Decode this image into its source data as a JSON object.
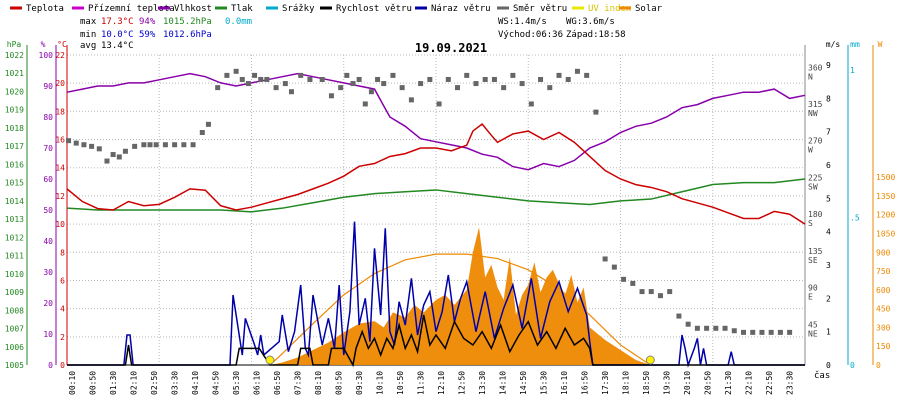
{
  "legend": [
    {
      "label": "Teplota",
      "color": "#cc0000"
    },
    {
      "label": "Přízemní teplota",
      "color": "#cc00cc"
    },
    {
      "label": "Vlhkost",
      "color": "#8800aa"
    },
    {
      "label": "Tlak",
      "color": "#228822"
    },
    {
      "label": "Srážky",
      "color": "#00aacc"
    },
    {
      "label": "Rychlost větru",
      "color": "#000000"
    },
    {
      "label": "Náraz větru",
      "color": "#0000aa"
    },
    {
      "label": "Směr větru",
      "color": "#666666"
    },
    {
      "label": "UV index",
      "color": "#e8e800"
    },
    {
      "label": "Solar",
      "color": "#ee8800"
    }
  ],
  "stats": {
    "max_label": "max",
    "max_temp": "17.3°C",
    "max_hum": "94%",
    "max_press": "1015.2hPa",
    "max_rain": "0.0mm",
    "min_label": "min",
    "min_temp": "10.0°C",
    "min_hum": "59%",
    "min_press": "1012.6hPa",
    "avg_label": "avg",
    "avg_temp": "13.4°C"
  },
  "wind_info": {
    "ws": "WS:1.4m/s",
    "wg": "WG:3.6m/s",
    "sunrise": "Východ:06:36",
    "sunset": "Západ:18:58"
  },
  "colors": {
    "temp": "#cc0000",
    "hum": "#8800aa",
    "press": "#228822",
    "wind": "#000000",
    "gust": "#0000aa",
    "dir": "#666666",
    "solar": "#ee8800",
    "rain": "#00aacc",
    "grid": "#bbbbbb",
    "sun_marker": "#ffee00"
  },
  "chart_data": {
    "type": "line",
    "title": "19.09.2021",
    "xlabel": "čas",
    "x_ticks": [
      "00:10",
      "00:50",
      "01:30",
      "02:10",
      "02:50",
      "03:30",
      "04:10",
      "04:50",
      "05:30",
      "06:10",
      "06:50",
      "07:30",
      "08:10",
      "08:50",
      "09:30",
      "10:10",
      "10:50",
      "11:30",
      "12:10",
      "12:50",
      "13:30",
      "14:10",
      "14:50",
      "15:30",
      "16:10",
      "16:50",
      "17:30",
      "18:10",
      "18:50",
      "19:30",
      "20:10",
      "20:50",
      "21:30",
      "22:10",
      "22:50",
      "23:30"
    ],
    "x_hours": [
      0,
      3,
      6,
      9,
      12,
      15,
      18,
      21,
      24
    ],
    "axes": {
      "temp": {
        "unit": "°C",
        "ylim": [
          0,
          22
        ],
        "ticks": [
          0,
          2,
          4,
          6,
          8,
          10,
          12,
          14,
          16,
          18,
          20,
          22
        ]
      },
      "hum": {
        "unit": "%",
        "ylim": [
          0,
          100
        ],
        "ticks": [
          0,
          10,
          20,
          30,
          40,
          50,
          60,
          70,
          80,
          90,
          100
        ]
      },
      "press": {
        "unit": "hPa",
        "ylim": [
          1005,
          1022
        ],
        "ticks": [
          1005,
          1006,
          1007,
          1008,
          1009,
          1010,
          1011,
          1012,
          1013,
          1014,
          1015,
          1016,
          1017,
          1018,
          1019,
          1020,
          1021,
          1022
        ]
      },
      "dir": {
        "ticks": [
          {
            "v": 45,
            "l": "45 NE"
          },
          {
            "v": 90,
            "l": "90 E"
          },
          {
            "v": 135,
            "l": "135 SE"
          },
          {
            "v": 180,
            "l": "180 S"
          },
          {
            "v": 225,
            "l": "225 SW"
          },
          {
            "v": 270,
            "l": "270 W"
          },
          {
            "v": 315,
            "l": "315 NW"
          },
          {
            "v": 360,
            "l": "360 N"
          }
        ]
      },
      "wind": {
        "unit": "m/s",
        "ylim": [
          0,
          9
        ],
        "ticks": [
          0,
          1,
          2,
          3,
          4,
          5,
          6,
          7,
          8,
          9
        ]
      },
      "rain": {
        "unit": "mm",
        "ticks": [
          {
            "v": 0,
            "l": "0"
          },
          {
            "v": 0.5,
            "l": ".5"
          },
          {
            "v": 1,
            "l": "1"
          }
        ]
      },
      "solar": {
        "unit": "W",
        "ylim": [
          0,
          2475
        ],
        "ticks": [
          0,
          150,
          300,
          450,
          600,
          750,
          900,
          1050,
          1200,
          1350,
          1500
        ]
      }
    },
    "series": [
      {
        "name": "Teplota",
        "axis": "temp",
        "x": [
          0,
          0.5,
          1,
          1.5,
          2,
          2.5,
          3,
          3.5,
          4,
          4.5,
          5,
          5.5,
          6,
          6.5,
          7,
          7.5,
          8,
          8.5,
          9,
          9.5,
          10,
          10.5,
          11,
          11.5,
          12,
          12.5,
          13,
          13.2,
          13.5,
          13.8,
          14,
          14.5,
          15,
          15.5,
          16,
          16.5,
          17,
          17.5,
          18,
          18.5,
          19,
          19.5,
          20,
          20.5,
          21,
          21.5,
          22,
          22.5,
          23,
          23.5,
          24
        ],
        "y": [
          12.5,
          11.6,
          11.1,
          11.0,
          11.6,
          11.3,
          11.4,
          11.9,
          12.5,
          12.4,
          11.3,
          11.0,
          11.2,
          11.5,
          11.8,
          12.1,
          12.5,
          12.9,
          13.4,
          14.1,
          14.3,
          14.8,
          15.0,
          15.4,
          15.4,
          15.2,
          15.6,
          16.6,
          17.1,
          16.3,
          15.8,
          16.4,
          16.6,
          16.0,
          16.5,
          15.8,
          14.8,
          13.8,
          13.2,
          12.8,
          12.6,
          12.3,
          11.8,
          11.5,
          11.2,
          10.8,
          10.4,
          10.4,
          10.9,
          10.7,
          10.0
        ]
      },
      {
        "name": "Vlhkost",
        "axis": "hum",
        "x": [
          0,
          0.5,
          1,
          1.5,
          2,
          2.5,
          3,
          3.5,
          4,
          4.5,
          5,
          5.5,
          6,
          6.5,
          7,
          7.5,
          8,
          8.5,
          9,
          9.5,
          10,
          10.5,
          11,
          11.5,
          12,
          12.5,
          13,
          13.5,
          14,
          14.5,
          15,
          15.5,
          16,
          16.5,
          17,
          17.5,
          18,
          18.5,
          19,
          19.5,
          20,
          20.5,
          21,
          21.5,
          22,
          22.5,
          23,
          23.5,
          24
        ],
        "y": [
          88,
          89,
          90,
          90,
          91,
          91,
          92,
          93,
          94,
          93,
          91,
          90,
          91,
          92,
          93,
          94,
          93,
          92,
          91,
          90,
          89,
          80,
          77,
          73,
          72,
          71,
          70,
          68,
          67,
          64,
          63,
          65,
          64,
          66,
          70,
          72,
          75,
          77,
          78,
          80,
          83,
          84,
          86,
          87,
          88,
          88,
          89,
          86,
          87
        ]
      },
      {
        "name": "Tlak",
        "axis": "press",
        "x": [
          0,
          1,
          2,
          3,
          4,
          5,
          6,
          7,
          8,
          9,
          10,
          11,
          12,
          13,
          14,
          15,
          16,
          17,
          18,
          19,
          20,
          21,
          22,
          23,
          24
        ],
        "y": [
          1013.6,
          1013.5,
          1013.5,
          1013.5,
          1013.5,
          1013.5,
          1013.4,
          1013.6,
          1013.9,
          1014.2,
          1014.4,
          1014.5,
          1014.6,
          1014.4,
          1014.2,
          1014.0,
          1013.9,
          1013.8,
          1014.0,
          1014.1,
          1014.5,
          1014.9,
          1015.0,
          1015.0,
          1015.2
        ]
      },
      {
        "name": "Rychlost větru",
        "axis": "wind",
        "x": [
          0,
          1.9,
          2.0,
          2.05,
          2.1,
          5.5,
          5.6,
          6.2,
          6.25,
          6.6,
          7.5,
          7.6,
          7.9,
          8.0,
          8.5,
          8.6,
          9.0,
          9.3,
          9.4,
          9.6,
          9.8,
          10.0,
          10.2,
          10.4,
          10.6,
          10.8,
          11.0,
          11.2,
          11.4,
          11.6,
          11.8,
          12.0,
          12.3,
          12.6,
          12.9,
          13.2,
          13.5,
          13.8,
          14.1,
          14.4,
          14.7,
          15.0,
          15.3,
          15.6,
          15.9,
          16.2,
          16.5,
          16.8,
          17.0,
          17.1,
          24
        ],
        "y": [
          0,
          0,
          0.6,
          0.3,
          0,
          0,
          0.5,
          0.5,
          0.5,
          0,
          0,
          0.5,
          0.5,
          0,
          0,
          0.5,
          0.5,
          0,
          0.5,
          1.0,
          0.5,
          0.8,
          0.3,
          0.8,
          0.5,
          1.2,
          0.5,
          0.9,
          0.4,
          1.5,
          0.6,
          0.9,
          0.5,
          1.3,
          0.8,
          0.6,
          1.0,
          0.5,
          1.2,
          0.4,
          0.9,
          1.3,
          0.6,
          1.0,
          0.5,
          1.1,
          0.6,
          0.8,
          0.5,
          0,
          0
        ]
      },
      {
        "name": "Náraz větru",
        "axis": "wind",
        "x": [
          0,
          1.85,
          1.95,
          2.05,
          2.15,
          5.3,
          5.4,
          5.55,
          5.7,
          5.8,
          6.1,
          6.2,
          6.3,
          6.4,
          6.9,
          7.0,
          7.2,
          7.4,
          7.6,
          7.75,
          7.85,
          8.0,
          8.3,
          8.5,
          8.7,
          8.85,
          9.0,
          9.2,
          9.35,
          9.5,
          9.7,
          9.85,
          10.0,
          10.2,
          10.35,
          10.5,
          10.65,
          10.8,
          11.0,
          11.2,
          11.4,
          11.6,
          11.8,
          12.0,
          12.2,
          12.4,
          12.6,
          12.8,
          13.0,
          13.3,
          13.6,
          13.9,
          14.2,
          14.5,
          14.8,
          15.1,
          15.4,
          15.7,
          16.0,
          16.3,
          16.6,
          16.9,
          17.0,
          17.1,
          19.9,
          20.0,
          20.1,
          20.2,
          20.4,
          20.5,
          20.6,
          20.7,
          20.8,
          21.5,
          21.6,
          21.7,
          24
        ],
        "y": [
          0,
          0,
          0.9,
          0.9,
          0,
          0,
          2.1,
          1.2,
          0.3,
          1.4,
          0.6,
          0.3,
          0.9,
          0.3,
          0.7,
          1.5,
          0.4,
          1.0,
          2.4,
          0.5,
          0.3,
          2.1,
          0.6,
          1.4,
          0.5,
          2.4,
          0.3,
          1.6,
          4.3,
          1.2,
          2.0,
          0.7,
          3.5,
          1.5,
          4.1,
          1.0,
          0.6,
          1.9,
          1.2,
          2.6,
          0.9,
          1.8,
          2.2,
          1.0,
          1.6,
          2.7,
          1.3,
          2.0,
          2.5,
          1.0,
          2.2,
          0.8,
          1.7,
          2.4,
          1.1,
          2.6,
          0.8,
          1.9,
          2.5,
          1.6,
          2.3,
          1.5,
          0.7,
          0,
          0,
          0.9,
          0.5,
          0,
          0.5,
          0.8,
          0,
          0.5,
          0,
          0,
          0.4,
          0,
          0
        ]
      },
      {
        "name": "Směr větru",
        "axis": "dir",
        "style": "points",
        "x": [
          0.05,
          0.3,
          0.55,
          0.8,
          1.05,
          1.3,
          1.5,
          1.7,
          1.9,
          2.2,
          2.5,
          2.7,
          2.9,
          3.2,
          3.5,
          3.8,
          4.1,
          4.4,
          4.6,
          4.9,
          5.2,
          5.5,
          5.7,
          5.9,
          6.1,
          6.3,
          6.5,
          6.8,
          7.1,
          7.3,
          7.6,
          7.9,
          8.3,
          8.6,
          8.9,
          9.1,
          9.3,
          9.5,
          9.7,
          9.9,
          10.1,
          10.3,
          10.6,
          10.9,
          11.2,
          11.5,
          11.8,
          12.1,
          12.4,
          12.7,
          13.0,
          13.3,
          13.6,
          13.9,
          14.2,
          14.5,
          14.8,
          15.1,
          15.4,
          15.7,
          16.0,
          16.3,
          16.6,
          16.9,
          17.2,
          17.5,
          17.8,
          18.1,
          18.4,
          18.7,
          19.0,
          19.3,
          19.6,
          19.9,
          20.2,
          20.5,
          20.8,
          21.1,
          21.4,
          21.7,
          22.0,
          22.3,
          22.6,
          22.9,
          23.2,
          23.5
        ],
        "y": [
          275,
          272,
          270,
          268,
          265,
          250,
          258,
          255,
          262,
          268,
          270,
          270,
          270,
          270,
          270,
          270,
          270,
          285,
          295,
          340,
          355,
          360,
          350,
          345,
          355,
          350,
          350,
          340,
          345,
          335,
          355,
          350,
          350,
          330,
          340,
          355,
          345,
          350,
          320,
          335,
          350,
          345,
          355,
          340,
          325,
          345,
          350,
          320,
          350,
          340,
          355,
          345,
          350,
          350,
          340,
          355,
          345,
          320,
          350,
          340,
          355,
          350,
          360,
          355,
          310,
          130,
          120,
          105,
          100,
          90,
          90,
          85,
          90,
          60,
          50,
          45,
          45,
          45,
          45,
          42,
          40,
          40,
          40,
          40,
          40,
          40
        ]
      },
      {
        "name": "Solar",
        "axis": "solar",
        "style": "area",
        "x": [
          6.6,
          7,
          7.5,
          8,
          8.5,
          9,
          9.5,
          10,
          10.3,
          10.6,
          11,
          11.3,
          11.6,
          12,
          12.3,
          12.6,
          13,
          13.2,
          13.4,
          13.6,
          13.8,
          14,
          14.2,
          14.4,
          14.6,
          14.8,
          15,
          15.2,
          15.4,
          15.6,
          15.8,
          16,
          16.2,
          16.4,
          16.6,
          16.8,
          17,
          17.5,
          18,
          18.5,
          18.97
        ],
        "y": [
          0,
          20,
          60,
          120,
          180,
          260,
          330,
          350,
          300,
          420,
          380,
          480,
          420,
          520,
          560,
          480,
          600,
          900,
          1100,
          700,
          800,
          620,
          520,
          860,
          400,
          560,
          640,
          820,
          580,
          700,
          760,
          650,
          560,
          720,
          500,
          620,
          300,
          200,
          120,
          40,
          0
        ]
      },
      {
        "name": "Solar",
        "axis": "solar",
        "style": "line",
        "x": [
          6.6,
          7,
          8,
          9,
          10,
          11,
          12,
          13,
          14,
          15,
          16,
          17,
          18,
          18.97
        ],
        "y": [
          0,
          90,
          330,
          560,
          730,
          840,
          885,
          885,
          850,
          760,
          610,
          400,
          160,
          0
        ]
      }
    ]
  }
}
